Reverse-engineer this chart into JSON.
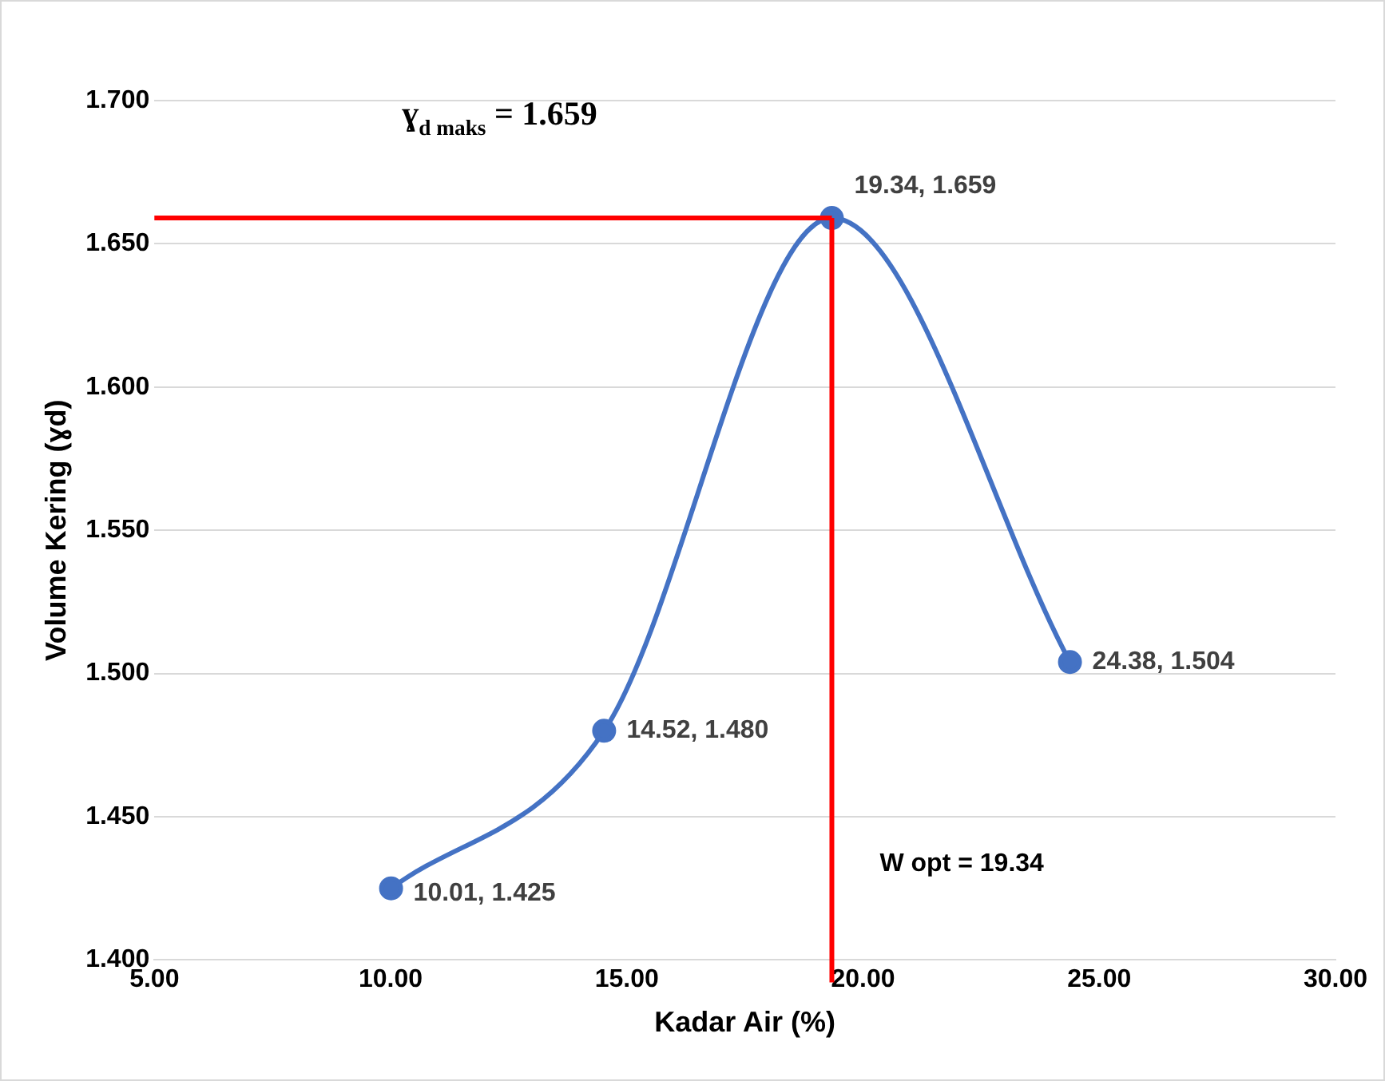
{
  "chart_data": {
    "type": "line",
    "xlabel": "Kadar Air (%)",
    "ylabel": "Volume Kering (ɣd)",
    "x": [
      10.01,
      14.52,
      19.34,
      24.38
    ],
    "series": [
      {
        "color": "#4472c4",
        "values": [
          1.425,
          1.48,
          1.659,
          1.504
        ],
        "value_labels": [
          "10.01, 1.425",
          "14.52, 1.480",
          "19.34, 1.659",
          "24.38, 1.504"
        ]
      }
    ],
    "xlim": [
      5,
      30
    ],
    "xticks": [
      {
        "value": 5,
        "label": "5.00"
      },
      {
        "value": 10,
        "label": "10.00"
      },
      {
        "value": 15,
        "label": "15.00"
      },
      {
        "value": 20,
        "label": "20.00"
      },
      {
        "value": 25,
        "label": "25.00"
      },
      {
        "value": 30,
        "label": "30.00"
      }
    ],
    "ylim": [
      1.4,
      1.7
    ],
    "yticks": [
      {
        "value": 1.4,
        "label": "1.400"
      },
      {
        "value": 1.45,
        "label": "1.450"
      },
      {
        "value": 1.5,
        "label": "1.500"
      },
      {
        "value": 1.55,
        "label": "1.550"
      },
      {
        "value": 1.6,
        "label": "1.600"
      },
      {
        "value": 1.65,
        "label": "1.650"
      },
      {
        "value": 1.7,
        "label": "1.700"
      }
    ],
    "ref_lines": [
      {
        "axis": "y",
        "value": 1.659,
        "label": "ɣ$_{d maks}$ = 1.659",
        "color": "#ff0000"
      },
      {
        "axis": "x",
        "value": 19.34,
        "label": "W opt = 19.34",
        "color": "#ff0000"
      }
    ],
    "grid": "y",
    "legend": false,
    "marker": "circle",
    "line_style": "solid"
  }
}
